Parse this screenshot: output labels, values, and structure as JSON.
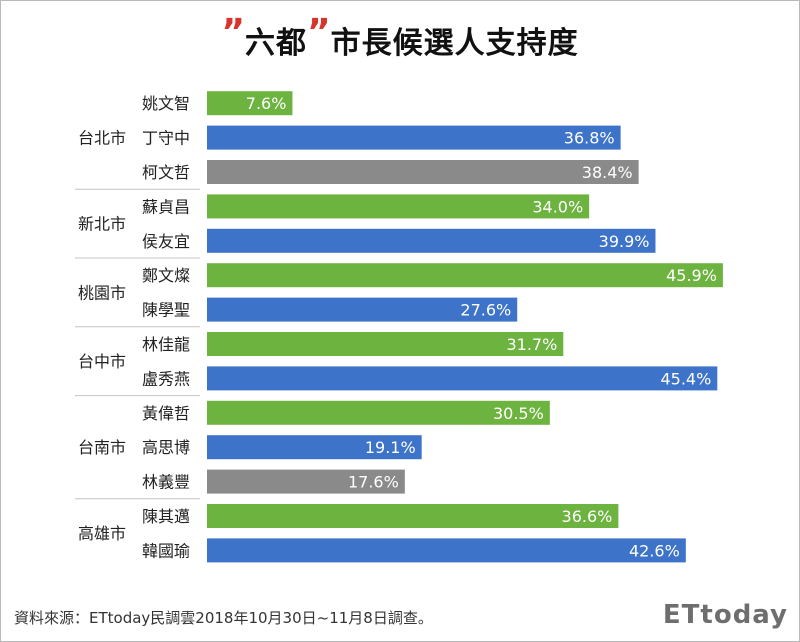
{
  "title": {
    "quote_left": "”",
    "text_1": "六都",
    "quote_right": "”",
    "text_2": "市長候選人支持度"
  },
  "source": "資料來源：ETtoday民調雲2018年10月30日~11月8日調查。",
  "watermark": "ETtoday",
  "colors": {
    "green": "#6db33f",
    "blue": "#3d73c9",
    "gray": "#8a8a8a"
  },
  "chart_data": {
    "type": "bar",
    "orientation": "horizontal",
    "title": "六都市長候選人支持度",
    "value_suffix": "%",
    "groups": [
      {
        "city": "台北市",
        "candidates": [
          {
            "name": "姚文智",
            "value": 7.6,
            "color": "green"
          },
          {
            "name": "丁守中",
            "value": 36.8,
            "color": "blue"
          },
          {
            "name": "柯文哲",
            "value": 38.4,
            "color": "gray"
          }
        ]
      },
      {
        "city": "新北市",
        "candidates": [
          {
            "name": "蘇貞昌",
            "value": 34.0,
            "color": "green"
          },
          {
            "name": "侯友宜",
            "value": 39.9,
            "color": "blue"
          }
        ]
      },
      {
        "city": "桃園市",
        "candidates": [
          {
            "name": "鄭文燦",
            "value": 45.9,
            "color": "green"
          },
          {
            "name": "陳學聖",
            "value": 27.6,
            "color": "blue"
          }
        ]
      },
      {
        "city": "台中市",
        "candidates": [
          {
            "name": "林佳龍",
            "value": 31.7,
            "color": "green"
          },
          {
            "name": "盧秀燕",
            "value": 45.4,
            "color": "blue"
          }
        ]
      },
      {
        "city": "台南市",
        "candidates": [
          {
            "name": "黃偉哲",
            "value": 30.5,
            "color": "green"
          },
          {
            "name": "高思博",
            "value": 19.1,
            "color": "blue"
          },
          {
            "name": "林義豐",
            "value": 17.6,
            "color": "gray"
          }
        ]
      },
      {
        "city": "高雄市",
        "candidates": [
          {
            "name": "陳其邁",
            "value": 36.6,
            "color": "green"
          },
          {
            "name": "韓國瑜",
            "value": 42.6,
            "color": "blue"
          }
        ]
      }
    ]
  }
}
